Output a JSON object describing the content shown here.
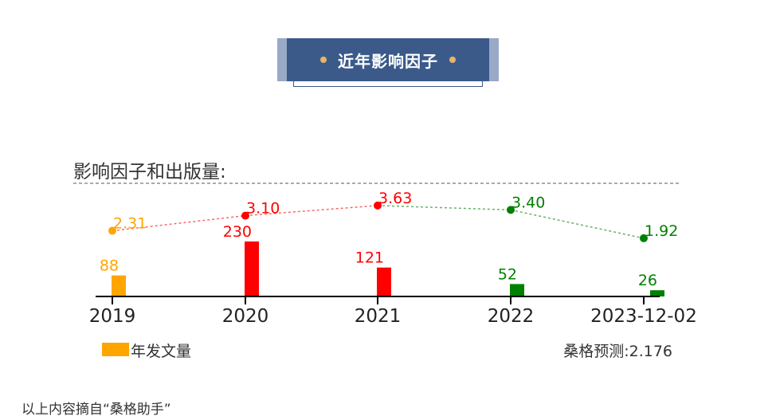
{
  "banner": {
    "title": "近年影响因子"
  },
  "chart_data": {
    "type": "bar+line",
    "title": "影响因子和出版量:",
    "categories": [
      "2019",
      "2020",
      "2021",
      "2022",
      "2023-12-02"
    ],
    "bar_values": [
      88,
      230,
      121,
      52,
      26
    ],
    "line_values": [
      2.31,
      3.1,
      3.63,
      3.4,
      1.92
    ],
    "line_labels": [
      "2.31",
      "3.10",
      "3.63",
      "3.40",
      "1.92"
    ],
    "point_colors": [
      "#ffa500",
      "#ff0000",
      "#ff0000",
      "#008000",
      "#008000"
    ],
    "legend": {
      "label": "年发文量",
      "color": "#ffa500"
    },
    "prediction": "桑格预测:2.176",
    "grid": false
  },
  "footer": {
    "source": "以上内容摘自“桑格助手”"
  }
}
